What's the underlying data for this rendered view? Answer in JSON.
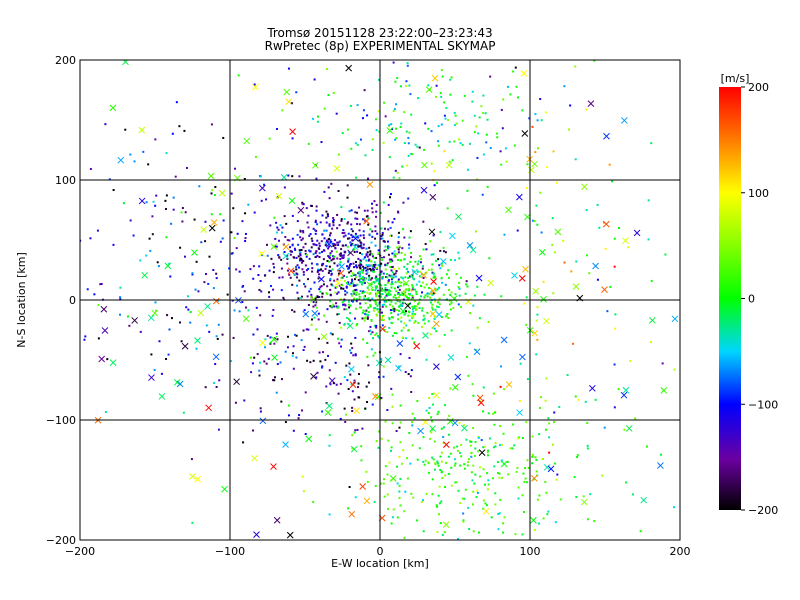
{
  "chart_data": {
    "type": "scatter",
    "title": "Tromsø 20151128 23:22:00–23:23:43",
    "subtitle": "RwPretec (8p) EXPERIMENTAL SKYMAP",
    "xlabel": "E-W location [km]",
    "ylabel": "N-S location [km]",
    "xlim": [
      -200,
      200
    ],
    "ylim": [
      -200,
      200
    ],
    "xticks": [
      -200,
      -100,
      0,
      100,
      200
    ],
    "yticks": [
      -200,
      -100,
      0,
      100,
      200
    ],
    "grid": true,
    "color_variable": "line-of-sight velocity",
    "colorbar": {
      "label": "[m/s]",
      "range": [
        -200,
        200
      ],
      "ticks": [
        200,
        100,
        0,
        -100,
        -200
      ],
      "colormap": "rainbow (black-purple-blue-cyan-green-yellow-red)"
    },
    "markers": [
      "dot",
      "x"
    ],
    "point_clusters": [
      {
        "marker": "dot",
        "center_x": -25,
        "center_y": 35,
        "spread_x": 28,
        "spread_y": 22,
        "mean_velocity": -140,
        "velocity_spread": 40,
        "count": 650
      },
      {
        "marker": "dot",
        "center_x": 10,
        "center_y": 5,
        "spread_x": 22,
        "spread_y": 20,
        "mean_velocity": 0,
        "velocity_spread": 35,
        "count": 550
      },
      {
        "marker": "dot",
        "center_x": 55,
        "center_y": -135,
        "spread_x": 40,
        "spread_y": 35,
        "mean_velocity": 10,
        "velocity_spread": 35,
        "count": 350
      },
      {
        "marker": "dot",
        "center_x": 35,
        "center_y": 150,
        "spread_x": 45,
        "spread_y": 35,
        "mean_velocity": -20,
        "velocity_spread": 60,
        "count": 200
      },
      {
        "marker": "dot",
        "center_x": -35,
        "center_y": -55,
        "spread_x": 30,
        "spread_y": 30,
        "mean_velocity": -150,
        "velocity_spread": 50,
        "count": 150
      },
      {
        "marker": "dot",
        "center_x": -120,
        "center_y": 30,
        "spread_x": 50,
        "spread_y": 70,
        "mean_velocity": -110,
        "velocity_spread": 70,
        "count": 220
      },
      {
        "marker": "dot",
        "center_x": 130,
        "center_y": 20,
        "spread_x": 45,
        "spread_y": 90,
        "mean_velocity": 20,
        "velocity_spread": 80,
        "count": 100
      },
      {
        "marker": "x",
        "center_x": 0,
        "center_y": 0,
        "spread_x": 110,
        "spread_y": 110,
        "mean_velocity": 0,
        "velocity_spread": 110,
        "count": 230
      }
    ],
    "colors": {
      "background": "#ffffff",
      "axes": "#000000"
    }
  }
}
